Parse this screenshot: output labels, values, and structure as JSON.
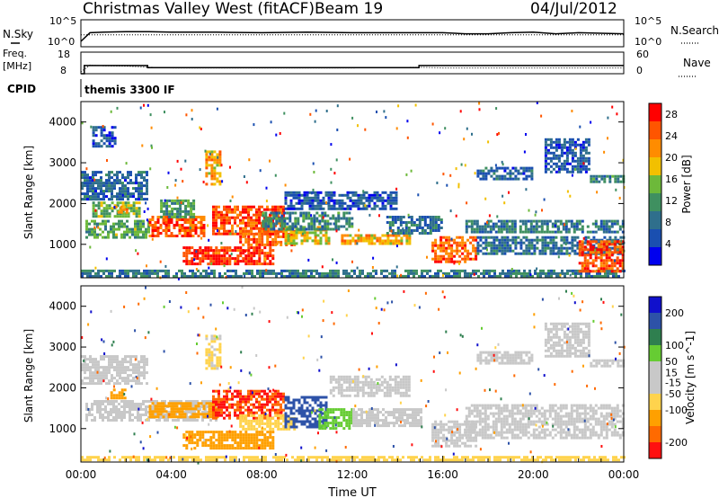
{
  "header": {
    "station": "Christmas Valley West (fitACF)",
    "beam": "Beam 19",
    "date": "04/Jul/2012"
  },
  "side_labels": {
    "nsky": "N.Sky",
    "nsearch": "N.Search",
    "freq_line1": "Freq.",
    "freq_line2": "[MHz]",
    "nave": "Nave",
    "cpid": "CPID"
  },
  "cpid_value": "themis 3300 IF",
  "noise_axes": {
    "left_ticks": [
      "10^5",
      "10^0"
    ],
    "right_ticks": [
      "10^5",
      "10^0"
    ]
  },
  "freq_axes": {
    "left_ticks": [
      "18",
      "8"
    ],
    "right_ticks": [
      "60",
      "0"
    ]
  },
  "colors": {
    "power_scale": [
      "#0000ee",
      "#1a4fb0",
      "#2f6f8c",
      "#3f9060",
      "#6db93a",
      "#f2c000",
      "#ff8c00",
      "#ff5500",
      "#ff0000"
    ],
    "velocity_scale": [
      "#ff1010",
      "#ff6a00",
      "#ffa000",
      "#ffd34d",
      "#c8c8c8",
      "#c8c8c8",
      "#66cc33",
      "#2f7f4f",
      "#2d52a8",
      "#1010cc"
    ],
    "grey_ground": "#bdbdbd"
  },
  "chart_data": [
    {
      "type": "line",
      "panel": "noise",
      "series": [
        {
          "name": "N.Sky",
          "x": [
            0,
            0.4,
            1,
            2,
            3,
            4,
            6,
            8,
            10,
            12,
            14,
            16,
            17,
            18,
            19,
            20,
            21,
            22,
            23,
            24
          ],
          "y": [
            1.0,
            2.6,
            2.7,
            2.8,
            2.8,
            2.7,
            2.7,
            2.6,
            2.7,
            2.6,
            2.6,
            2.6,
            2.4,
            2.4,
            2.6,
            2.7,
            2.4,
            2.6,
            2.5,
            2.4
          ]
        },
        {
          "name": "N.Search",
          "x": [
            0,
            1,
            4,
            8,
            12,
            16,
            20,
            24
          ],
          "y": [
            2.2,
            2.2,
            2.2,
            2.2,
            2.2,
            2.2,
            2.2,
            2.2
          ]
        }
      ],
      "xlim": [
        0,
        24
      ],
      "ylim": [
        0,
        5
      ]
    },
    {
      "type": "line",
      "panel": "frequency",
      "series": [
        {
          "name": "Freq.",
          "x": [
            0,
            0.15,
            0.15,
            2.95,
            2.95,
            14.95,
            14.95,
            24
          ],
          "y": [
            8,
            8,
            11.8,
            11.8,
            10.8,
            10.8,
            11.8,
            11.8
          ]
        },
        {
          "name": "Nave",
          "x": [
            0,
            0.4,
            1,
            2,
            3,
            4,
            8,
            12,
            15,
            16,
            20,
            24
          ],
          "y": [
            5,
            24,
            22,
            21,
            18,
            16,
            16,
            16,
            18,
            16,
            16,
            16
          ]
        }
      ],
      "ylim_freq": [
        8,
        18
      ],
      "ylim_nave": [
        0,
        60
      ],
      "xlim": [
        0,
        24
      ]
    },
    {
      "type": "heatmap",
      "panel": "power",
      "xlabel": "",
      "ylabel": "Slant Range [km]",
      "xlim": [
        0,
        24
      ],
      "ylim": [
        180,
        4500
      ],
      "yticks": [
        1000,
        2000,
        3000,
        4000
      ],
      "colorbar": {
        "label": "Power [dB]",
        "ticks": [
          4,
          8,
          12,
          16,
          20,
          24,
          28
        ],
        "range": [
          0,
          30
        ]
      },
      "regions": [
        {
          "x0": 0.0,
          "x1": 2.9,
          "r0": 2100,
          "r1": 2800,
          "v": 7
        },
        {
          "x0": 0.5,
          "x1": 2.6,
          "r0": 1700,
          "r1": 2050,
          "v": 14
        },
        {
          "x0": 1.5,
          "x1": 2.0,
          "r0": 1780,
          "r1": 1950,
          "v": 22
        },
        {
          "x0": 0.2,
          "x1": 3.0,
          "r0": 1200,
          "r1": 1600,
          "v": 13
        },
        {
          "x0": 0.0,
          "x1": 24.0,
          "r0": 200,
          "r1": 380,
          "v": 9
        },
        {
          "x0": 3.0,
          "x1": 5.5,
          "r0": 1200,
          "r1": 1700,
          "v": 25
        },
        {
          "x0": 3.5,
          "x1": 5.0,
          "r0": 1700,
          "r1": 2100,
          "v": 12
        },
        {
          "x0": 4.5,
          "x1": 8.5,
          "r0": 550,
          "r1": 950,
          "v": 27
        },
        {
          "x0": 5.8,
          "x1": 9.0,
          "r0": 1250,
          "r1": 1950,
          "v": 26
        },
        {
          "x0": 5.5,
          "x1": 6.2,
          "r0": 2500,
          "r1": 3300,
          "v": 20
        },
        {
          "x0": 7.0,
          "x1": 9.5,
          "r0": 1000,
          "r1": 1350,
          "v": 24
        },
        {
          "x0": 9.0,
          "x1": 11.0,
          "r0": 1050,
          "r1": 1450,
          "v": 18
        },
        {
          "x0": 8.0,
          "x1": 12.0,
          "r0": 1400,
          "r1": 1800,
          "v": 10
        },
        {
          "x0": 9.0,
          "x1": 14.0,
          "r0": 1900,
          "r1": 2300,
          "v": 6
        },
        {
          "x0": 11.5,
          "x1": 14.5,
          "r0": 1050,
          "r1": 1250,
          "v": 20
        },
        {
          "x0": 13.5,
          "x1": 16.0,
          "r0": 1300,
          "r1": 1700,
          "v": 8
        },
        {
          "x0": 15.5,
          "x1": 17.5,
          "r0": 600,
          "r1": 1200,
          "v": 24
        },
        {
          "x0": 17.0,
          "x1": 24.0,
          "r0": 1300,
          "r1": 1600,
          "v": 9
        },
        {
          "x0": 17.5,
          "x1": 24.0,
          "r0": 800,
          "r1": 1200,
          "v": 8
        },
        {
          "x0": 17.5,
          "x1": 20.0,
          "r0": 2600,
          "r1": 2900,
          "v": 7
        },
        {
          "x0": 20.5,
          "x1": 22.5,
          "r0": 2800,
          "r1": 3600,
          "v": 6
        },
        {
          "x0": 22.5,
          "x1": 24.0,
          "r0": 2550,
          "r1": 2700,
          "v": 10
        },
        {
          "x0": 22.0,
          "x1": 24.0,
          "r0": 350,
          "r1": 1100,
          "v": 25
        },
        {
          "x0": 0.5,
          "x1": 1.5,
          "r0": 3400,
          "r1": 3900,
          "v": 5
        }
      ]
    },
    {
      "type": "heatmap",
      "panel": "velocity",
      "xlabel": "Time UT",
      "ylabel": "Slant Range [km]",
      "xlim": [
        0,
        24
      ],
      "ylim": [
        180,
        4500
      ],
      "xticks": [
        "00:00",
        "04:00",
        "08:00",
        "12:00",
        "16:00",
        "20:00",
        "00:00"
      ],
      "yticks": [
        1000,
        2000,
        3000,
        4000
      ],
      "colorbar": {
        "label": "Velocity [m s^-1]",
        "ticks": [
          -200,
          -100,
          -50,
          -15,
          15,
          50,
          100,
          200
        ],
        "range": [
          -250,
          250
        ]
      },
      "regions": [
        {
          "x0": 0.0,
          "x1": 2.9,
          "r0": 2100,
          "r1": 2800,
          "v": 0
        },
        {
          "x0": 1.3,
          "x1": 2.0,
          "r0": 1780,
          "r1": 1980,
          "v": -90
        },
        {
          "x0": 0.2,
          "x1": 6.0,
          "r0": 1200,
          "r1": 1700,
          "v": 0
        },
        {
          "x0": 3.0,
          "x1": 6.0,
          "r0": 1300,
          "r1": 1650,
          "v": -60
        },
        {
          "x0": 4.5,
          "x1": 8.5,
          "r0": 550,
          "r1": 950,
          "v": -60
        },
        {
          "x0": 5.8,
          "x1": 9.0,
          "r0": 1250,
          "r1": 1950,
          "v": -200
        },
        {
          "x0": 7.0,
          "x1": 9.5,
          "r0": 1000,
          "r1": 1350,
          "v": -40
        },
        {
          "x0": 9.0,
          "x1": 10.8,
          "r0": 1050,
          "r1": 1800,
          "v": 120
        },
        {
          "x0": 10.5,
          "x1": 12.0,
          "r0": 1000,
          "r1": 1500,
          "v": 40
        },
        {
          "x0": 12.0,
          "x1": 15.0,
          "r0": 1050,
          "r1": 1500,
          "v": 0
        },
        {
          "x0": 0.0,
          "x1": 24.0,
          "r0": 200,
          "r1": 330,
          "v": -30
        },
        {
          "x0": 15.5,
          "x1": 17.5,
          "r0": 600,
          "r1": 1200,
          "v": 0
        },
        {
          "x0": 17.0,
          "x1": 24.0,
          "r0": 800,
          "r1": 1600,
          "v": 0
        },
        {
          "x0": 17.5,
          "x1": 20.0,
          "r0": 2600,
          "r1": 2900,
          "v": 0
        },
        {
          "x0": 20.5,
          "x1": 22.5,
          "r0": 2800,
          "r1": 3600,
          "v": 0
        },
        {
          "x0": 22.5,
          "x1": 24.0,
          "r0": 2550,
          "r1": 2700,
          "v": 0
        },
        {
          "x0": 5.5,
          "x1": 6.2,
          "r0": 2500,
          "r1": 3300,
          "v": -20
        },
        {
          "x0": 11.0,
          "x1": 14.5,
          "r0": 1800,
          "r1": 2300,
          "v": 0
        }
      ]
    }
  ]
}
